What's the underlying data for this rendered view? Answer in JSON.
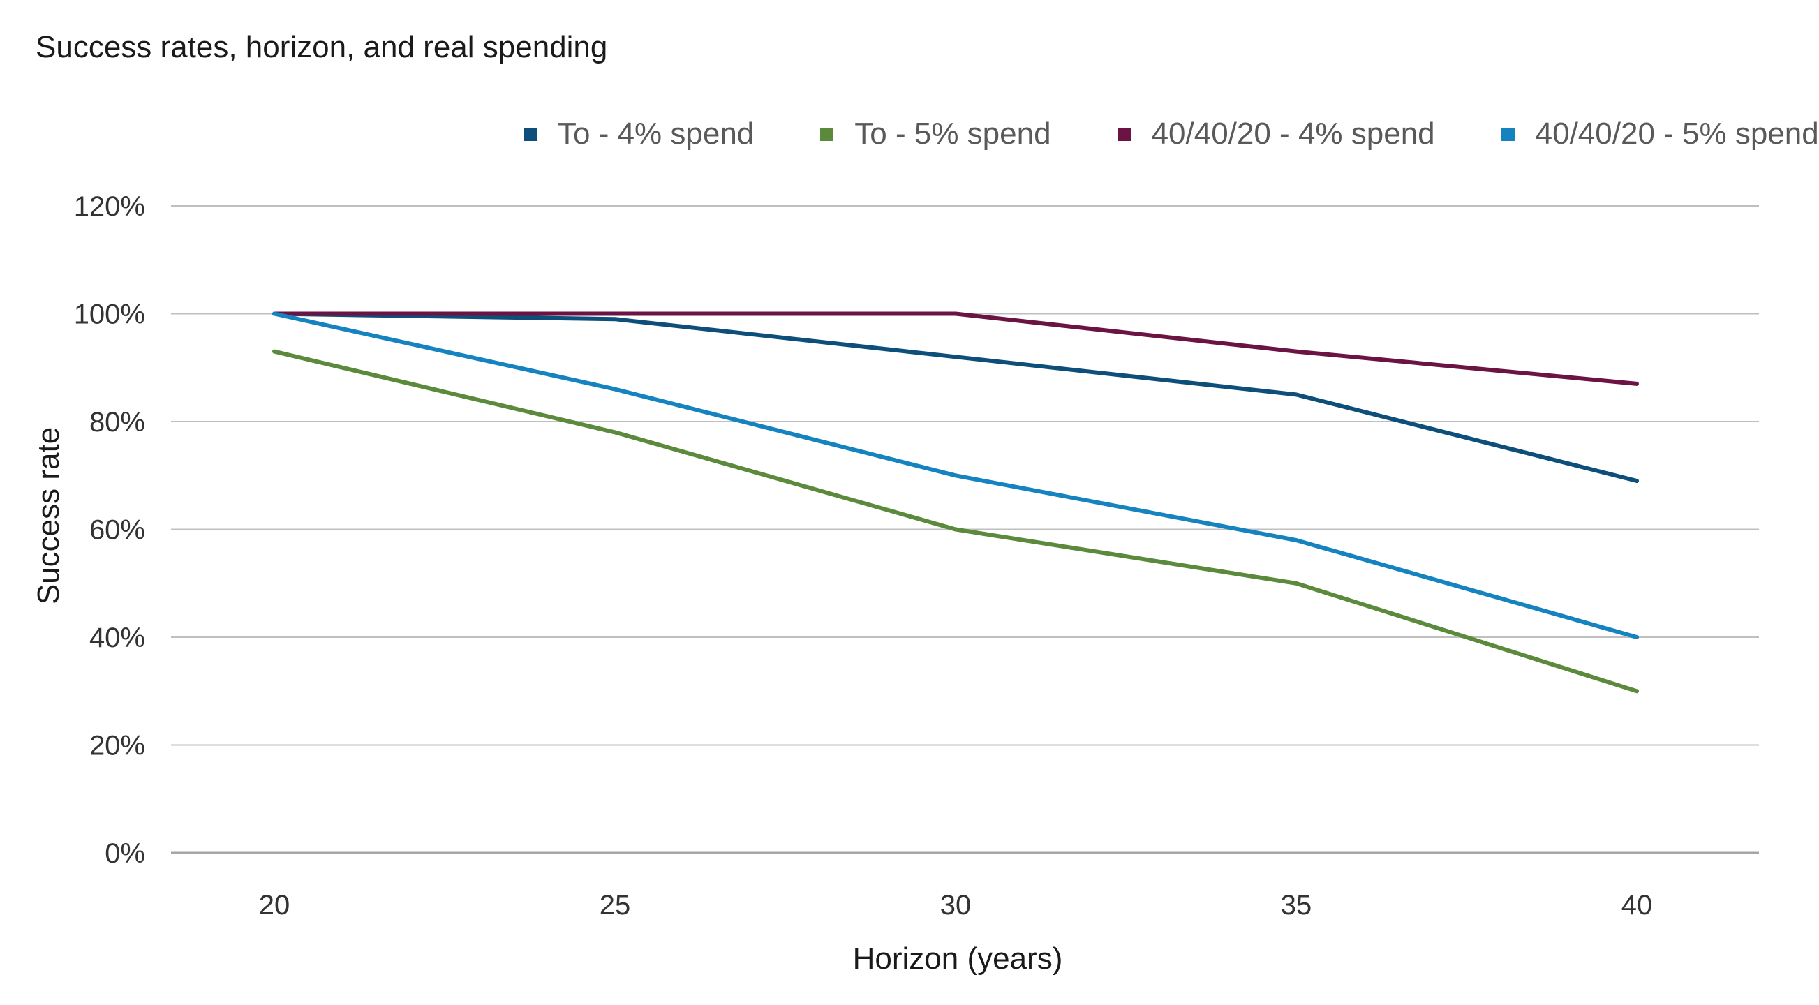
{
  "chart_data": {
    "type": "line",
    "title": "Success rates, horizon, and real spending",
    "xlabel": "Horizon (years)",
    "ylabel": "Success rate",
    "x": [
      20,
      25,
      30,
      35,
      40
    ],
    "x_tick_labels": [
      "20",
      "25",
      "30",
      "35",
      "40"
    ],
    "y_tick_labels": [
      "0%",
      "20%",
      "40%",
      "60%",
      "80%",
      "100%",
      "120%"
    ],
    "y_ticks": [
      0,
      20,
      40,
      60,
      80,
      100,
      120
    ],
    "xlim": [
      20,
      40
    ],
    "ylim": [
      0,
      120
    ],
    "grid": true,
    "legend_position": "top-right",
    "series": [
      {
        "name": "To - 4% spend",
        "color": "#0d4f7a",
        "values": [
          100,
          99,
          92,
          85,
          69
        ]
      },
      {
        "name": "To - 5% spend",
        "color": "#5b8a3c",
        "values": [
          93,
          78,
          60,
          50,
          30
        ]
      },
      {
        "name": "40/40/20 - 4% spend",
        "color": "#6b1444",
        "values": [
          100,
          100,
          100,
          93,
          87
        ]
      },
      {
        "name": "40/40/20 - 5% spend",
        "color": "#1583c0",
        "values": [
          100,
          86,
          70,
          58,
          40
        ]
      }
    ]
  }
}
